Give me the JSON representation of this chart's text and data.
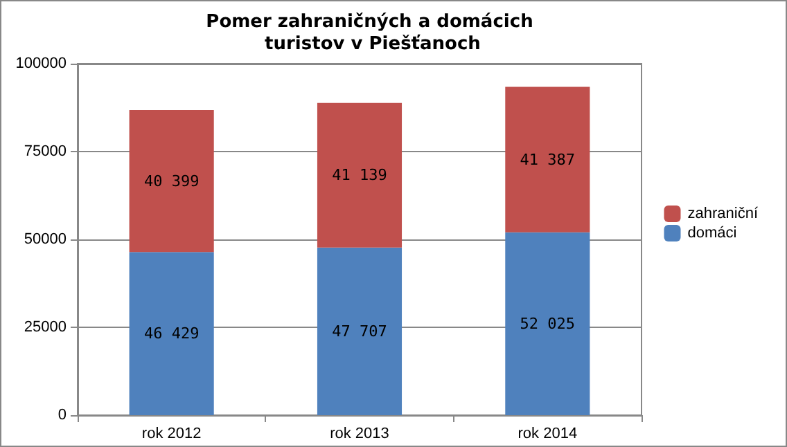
{
  "chart_data": {
    "type": "bar",
    "title": "Pomer zahraničných a domácich turistov v Piešťanoch",
    "categories": [
      "rok 2012",
      "rok 2013",
      "rok 2014"
    ],
    "stacked": true,
    "series": [
      {
        "name": "domáci",
        "color": "#4f81bd",
        "values": [
          46429,
          47707,
          52025
        ],
        "value_labels": [
          "46 429",
          "47 707",
          "52 025"
        ]
      },
      {
        "name": "zahraniční",
        "color": "#c0504d",
        "values": [
          40399,
          41139,
          41387
        ],
        "value_labels": [
          "40 399",
          "41 139",
          "41 387"
        ]
      }
    ],
    "ylim": [
      0,
      100000
    ],
    "yticks": [
      0,
      25000,
      50000,
      75000,
      100000
    ],
    "grid": "y",
    "legend": "right"
  }
}
